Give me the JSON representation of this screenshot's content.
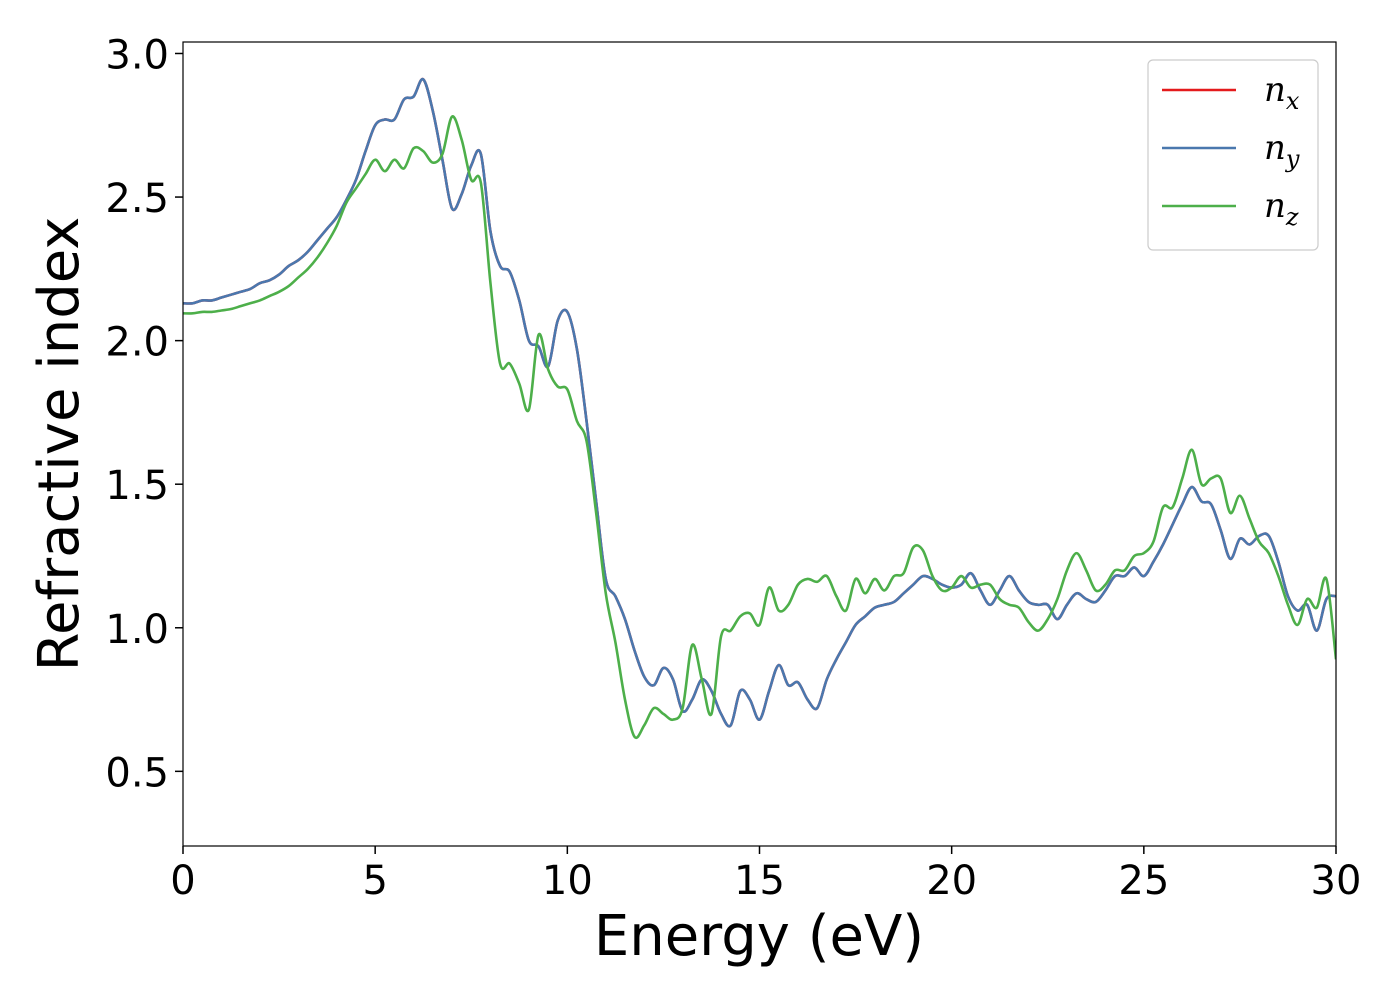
{
  "chart_data": {
    "type": "line",
    "xlabel": "Energy (eV)",
    "ylabel": "Refractive index",
    "xlim": [
      0,
      30
    ],
    "ylim": [
      0.24,
      3.04
    ],
    "xticks": [
      0,
      5,
      10,
      15,
      20,
      25,
      30
    ],
    "yticks": [
      0.5,
      {
        "value": 1.0,
        "label": "1.0"
      },
      1.5,
      {
        "value": 2.0,
        "label": "2.0"
      },
      2.5,
      {
        "value": 3.0,
        "label": "3.0"
      }
    ],
    "legend": "upper right",
    "x": [
      0,
      0.25,
      0.5,
      0.75,
      1,
      1.25,
      1.5,
      1.75,
      2,
      2.25,
      2.5,
      2.75,
      3,
      3.25,
      3.5,
      3.75,
      4,
      4.25,
      4.5,
      4.75,
      5,
      5.25,
      5.5,
      5.75,
      6,
      6.25,
      6.5,
      6.75,
      7,
      7.25,
      7.5,
      7.75,
      8,
      8.25,
      8.5,
      8.75,
      9,
      9.25,
      9.5,
      9.75,
      10,
      10.25,
      10.5,
      10.75,
      11,
      11.25,
      11.5,
      11.75,
      12,
      12.25,
      12.5,
      12.75,
      13,
      13.25,
      13.5,
      13.75,
      14,
      14.25,
      14.5,
      14.75,
      15,
      15.25,
      15.5,
      15.75,
      16,
      16.25,
      16.5,
      16.75,
      17,
      17.25,
      17.5,
      17.75,
      18,
      18.25,
      18.5,
      18.75,
      19,
      19.25,
      19.5,
      19.75,
      20,
      20.25,
      20.5,
      20.75,
      21,
      21.25,
      21.5,
      21.75,
      22,
      22.25,
      22.5,
      22.75,
      23,
      23.25,
      23.5,
      23.75,
      24,
      24.25,
      24.5,
      24.75,
      25,
      25.25,
      25.5,
      25.75,
      26,
      26.25,
      26.5,
      26.75,
      27,
      27.25,
      27.5,
      27.75,
      28,
      28.25,
      28.5,
      28.75,
      29,
      29.25,
      29.5,
      29.75,
      30
    ],
    "series": [
      {
        "name": "nx",
        "color": "#e41a1c",
        "values": [
          2.13,
          2.13,
          2.14,
          2.14,
          2.15,
          2.16,
          2.17,
          2.18,
          2.2,
          2.21,
          2.23,
          2.26,
          2.28,
          2.31,
          2.35,
          2.39,
          2.43,
          2.49,
          2.56,
          2.66,
          2.75,
          2.77,
          2.77,
          2.84,
          2.85,
          2.91,
          2.8,
          2.63,
          2.46,
          2.51,
          2.61,
          2.65,
          2.38,
          2.26,
          2.24,
          2.14,
          2.0,
          1.98,
          1.91,
          2.07,
          2.1,
          1.97,
          1.72,
          1.44,
          1.17,
          1.11,
          1.03,
          0.92,
          0.83,
          0.8,
          0.86,
          0.82,
          0.71,
          0.75,
          0.82,
          0.78,
          0.7,
          0.66,
          0.78,
          0.75,
          0.68,
          0.78,
          0.87,
          0.8,
          0.81,
          0.75,
          0.72,
          0.82,
          0.89,
          0.95,
          1.01,
          1.04,
          1.07,
          1.08,
          1.09,
          1.12,
          1.15,
          1.18,
          1.17,
          1.15,
          1.14,
          1.15,
          1.19,
          1.13,
          1.08,
          1.13,
          1.18,
          1.13,
          1.09,
          1.08,
          1.08,
          1.03,
          1.08,
          1.12,
          1.1,
          1.09,
          1.13,
          1.18,
          1.18,
          1.21,
          1.18,
          1.23,
          1.29,
          1.36,
          1.43,
          1.49,
          1.44,
          1.43,
          1.34,
          1.24,
          1.31,
          1.29,
          1.32,
          1.32,
          1.23,
          1.11,
          1.06,
          1.08,
          0.99,
          1.1,
          1.11
        ]
      },
      {
        "name": "ny",
        "color": "#4a78ae",
        "values": [
          2.13,
          2.13,
          2.14,
          2.14,
          2.15,
          2.16,
          2.17,
          2.18,
          2.2,
          2.21,
          2.23,
          2.26,
          2.28,
          2.31,
          2.35,
          2.39,
          2.43,
          2.49,
          2.56,
          2.66,
          2.75,
          2.77,
          2.77,
          2.84,
          2.85,
          2.91,
          2.8,
          2.63,
          2.46,
          2.51,
          2.61,
          2.65,
          2.38,
          2.26,
          2.24,
          2.14,
          2.0,
          1.98,
          1.91,
          2.07,
          2.1,
          1.97,
          1.72,
          1.44,
          1.17,
          1.11,
          1.03,
          0.92,
          0.83,
          0.8,
          0.86,
          0.82,
          0.71,
          0.75,
          0.82,
          0.78,
          0.7,
          0.66,
          0.78,
          0.75,
          0.68,
          0.78,
          0.87,
          0.8,
          0.81,
          0.75,
          0.72,
          0.82,
          0.89,
          0.95,
          1.01,
          1.04,
          1.07,
          1.08,
          1.09,
          1.12,
          1.15,
          1.18,
          1.17,
          1.15,
          1.14,
          1.15,
          1.19,
          1.13,
          1.08,
          1.13,
          1.18,
          1.13,
          1.09,
          1.08,
          1.08,
          1.03,
          1.08,
          1.12,
          1.1,
          1.09,
          1.13,
          1.18,
          1.18,
          1.21,
          1.18,
          1.23,
          1.29,
          1.36,
          1.43,
          1.49,
          1.44,
          1.43,
          1.34,
          1.24,
          1.31,
          1.29,
          1.32,
          1.32,
          1.23,
          1.11,
          1.06,
          1.08,
          0.99,
          1.1,
          1.11
        ]
      },
      {
        "name": "nz",
        "color": "#4daf4a",
        "values": [
          2.095,
          2.095,
          2.1,
          2.1,
          2.105,
          2.11,
          2.12,
          2.13,
          2.14,
          2.155,
          2.17,
          2.19,
          2.22,
          2.25,
          2.29,
          2.34,
          2.4,
          2.48,
          2.53,
          2.58,
          2.63,
          2.59,
          2.63,
          2.6,
          2.67,
          2.66,
          2.62,
          2.65,
          2.78,
          2.7,
          2.56,
          2.55,
          2.2,
          1.92,
          1.92,
          1.85,
          1.76,
          2.02,
          1.9,
          1.84,
          1.83,
          1.72,
          1.65,
          1.4,
          1.12,
          0.95,
          0.75,
          0.62,
          0.66,
          0.72,
          0.7,
          0.68,
          0.72,
          0.94,
          0.82,
          0.7,
          0.97,
          0.99,
          1.04,
          1.05,
          1.01,
          1.14,
          1.06,
          1.08,
          1.15,
          1.17,
          1.16,
          1.18,
          1.11,
          1.06,
          1.17,
          1.12,
          1.17,
          1.13,
          1.18,
          1.19,
          1.28,
          1.27,
          1.18,
          1.13,
          1.14,
          1.18,
          1.14,
          1.15,
          1.15,
          1.1,
          1.08,
          1.07,
          1.02,
          0.99,
          1.03,
          1.1,
          1.2,
          1.26,
          1.2,
          1.13,
          1.15,
          1.2,
          1.2,
          1.25,
          1.26,
          1.3,
          1.42,
          1.42,
          1.52,
          1.62,
          1.5,
          1.52,
          1.52,
          1.4,
          1.46,
          1.38,
          1.3,
          1.26,
          1.18,
          1.08,
          1.01,
          1.1,
          1.07,
          1.17,
          0.89
        ]
      }
    ]
  }
}
